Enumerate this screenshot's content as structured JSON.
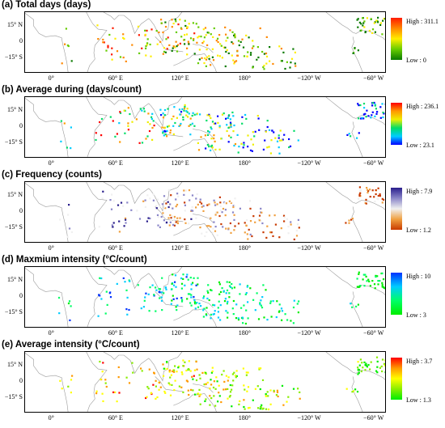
{
  "panels": [
    {
      "title": "(a) Total days (days)",
      "high": "High : 311.1",
      "low": "Low : 0",
      "colors": [
        "#ff1a00",
        "#ff8800",
        "#ffee00",
        "#66cc00",
        "#0a7a00"
      ]
    },
    {
      "title": "(b) Average during (days/count)",
      "high": "High : 236.1",
      "low": "Low : 23.1",
      "colors": [
        "#ff0000",
        "#ff9900",
        "#eeee00",
        "#00dd66",
        "#00ccff",
        "#0000ff"
      ]
    },
    {
      "title": "(c) Frequency (counts)",
      "high": "High : 7.9",
      "low": "Low : 1.2",
      "colors": [
        "#2a1e8c",
        "#8a86c8",
        "#f0f0f0",
        "#f0a040",
        "#c83a00"
      ]
    },
    {
      "title": "(d) Maxmium intensity (°C/count)",
      "high": "High : 10",
      "low": "Low : 3",
      "colors": [
        "#0033ff",
        "#00ccff",
        "#00ff66",
        "#00ee00"
      ]
    },
    {
      "title": "(e) Average intensity (°C/count)",
      "high": "High : 3.7",
      "low": "Low : 1.3",
      "colors": [
        "#ff0000",
        "#ff9900",
        "#ffff00",
        "#88ee00",
        "#00ee00"
      ]
    }
  ],
  "lat_labels": [
    "15° N",
    "0",
    "−15° S"
  ],
  "lon_labels": [
    "0°",
    "60° E",
    "120° E",
    "180°",
    "−120° W",
    "−60° W"
  ]
}
